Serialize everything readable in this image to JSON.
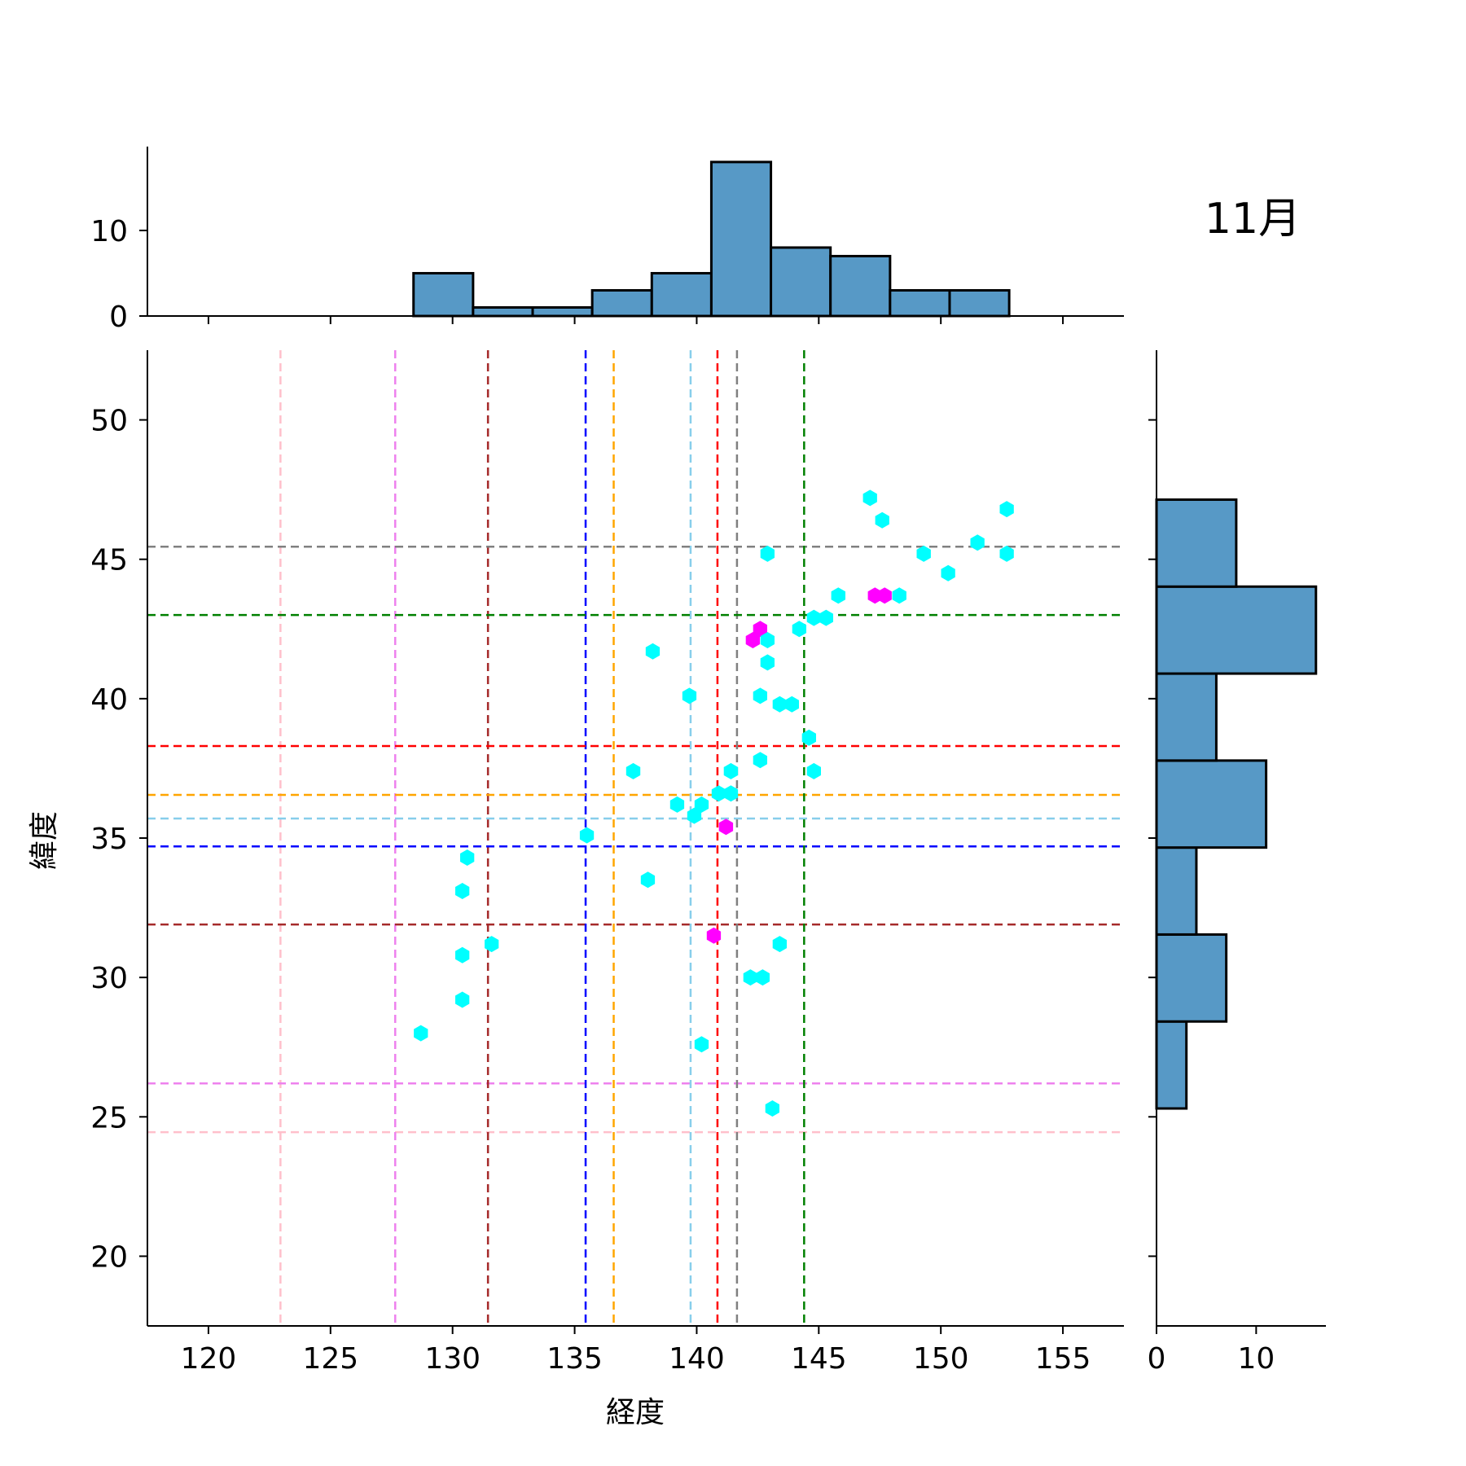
{
  "annotation": "11月",
  "chart_data": {
    "type": "scatter",
    "xlabel": "経度",
    "ylabel": "緯度",
    "xlim": [
      117.5,
      157.5
    ],
    "ylim": [
      17.5,
      52.5
    ],
    "x_ticks": [
      120,
      125,
      130,
      135,
      140,
      145,
      150,
      155
    ],
    "y_ticks": [
      20,
      25,
      30,
      35,
      40,
      45,
      50
    ],
    "point_colors": {
      "default": "#00ffff",
      "highlight": "#ff00ff"
    },
    "points": [
      {
        "x": 147.1,
        "y": 47.2,
        "c": "default"
      },
      {
        "x": 147.6,
        "y": 46.4,
        "c": "default"
      },
      {
        "x": 152.7,
        "y": 46.8,
        "c": "default"
      },
      {
        "x": 151.5,
        "y": 45.6,
        "c": "default"
      },
      {
        "x": 152.7,
        "y": 45.2,
        "c": "default"
      },
      {
        "x": 149.3,
        "y": 45.2,
        "c": "default"
      },
      {
        "x": 150.3,
        "y": 44.5,
        "c": "default"
      },
      {
        "x": 142.9,
        "y": 45.2,
        "c": "default"
      },
      {
        "x": 145.8,
        "y": 43.7,
        "c": "default"
      },
      {
        "x": 148.3,
        "y": 43.7,
        "c": "default"
      },
      {
        "x": 147.3,
        "y": 43.7,
        "c": "highlight"
      },
      {
        "x": 147.7,
        "y": 43.7,
        "c": "highlight"
      },
      {
        "x": 144.8,
        "y": 42.9,
        "c": "default"
      },
      {
        "x": 145.3,
        "y": 42.9,
        "c": "default"
      },
      {
        "x": 144.2,
        "y": 42.5,
        "c": "default"
      },
      {
        "x": 142.6,
        "y": 42.5,
        "c": "highlight"
      },
      {
        "x": 142.3,
        "y": 42.1,
        "c": "highlight"
      },
      {
        "x": 142.9,
        "y": 42.1,
        "c": "default"
      },
      {
        "x": 138.2,
        "y": 41.7,
        "c": "default"
      },
      {
        "x": 142.9,
        "y": 41.3,
        "c": "default"
      },
      {
        "x": 139.7,
        "y": 40.1,
        "c": "default"
      },
      {
        "x": 142.6,
        "y": 40.1,
        "c": "default"
      },
      {
        "x": 143.4,
        "y": 39.8,
        "c": "default"
      },
      {
        "x": 143.9,
        "y": 39.8,
        "c": "default"
      },
      {
        "x": 144.6,
        "y": 38.6,
        "c": "default"
      },
      {
        "x": 142.6,
        "y": 37.8,
        "c": "default"
      },
      {
        "x": 137.4,
        "y": 37.4,
        "c": "default"
      },
      {
        "x": 141.4,
        "y": 37.4,
        "c": "default"
      },
      {
        "x": 144.8,
        "y": 37.4,
        "c": "default"
      },
      {
        "x": 140.9,
        "y": 36.6,
        "c": "default"
      },
      {
        "x": 141.4,
        "y": 36.6,
        "c": "default"
      },
      {
        "x": 139.2,
        "y": 36.2,
        "c": "default"
      },
      {
        "x": 140.2,
        "y": 36.2,
        "c": "default"
      },
      {
        "x": 139.9,
        "y": 35.8,
        "c": "default"
      },
      {
        "x": 141.2,
        "y": 35.4,
        "c": "highlight"
      },
      {
        "x": 135.5,
        "y": 35.1,
        "c": "default"
      },
      {
        "x": 130.6,
        "y": 34.3,
        "c": "default"
      },
      {
        "x": 138.0,
        "y": 33.5,
        "c": "default"
      },
      {
        "x": 130.4,
        "y": 33.1,
        "c": "default"
      },
      {
        "x": 140.7,
        "y": 31.5,
        "c": "highlight"
      },
      {
        "x": 131.6,
        "y": 31.2,
        "c": "default"
      },
      {
        "x": 143.4,
        "y": 31.2,
        "c": "default"
      },
      {
        "x": 130.4,
        "y": 30.8,
        "c": "default"
      },
      {
        "x": 142.2,
        "y": 30.0,
        "c": "default"
      },
      {
        "x": 142.7,
        "y": 30.0,
        "c": "default"
      },
      {
        "x": 130.4,
        "y": 29.2,
        "c": "default"
      },
      {
        "x": 128.7,
        "y": 28.0,
        "c": "default"
      },
      {
        "x": 140.2,
        "y": 27.6,
        "c": "default"
      },
      {
        "x": 143.1,
        "y": 25.3,
        "c": "default"
      }
    ],
    "reference_lines": [
      {
        "color": "#ffc0cb",
        "x": 122.95,
        "y": 24.45
      },
      {
        "color": "#ee82ee",
        "x": 127.65,
        "y": 26.2
      },
      {
        "color": "#a52a2a",
        "x": 131.45,
        "y": 31.9
      },
      {
        "color": "#0000ff",
        "x": 135.45,
        "y": 34.7
      },
      {
        "color": "#ffa500",
        "x": 136.6,
        "y": 36.55
      },
      {
        "color": "#87ceeb",
        "x": 139.75,
        "y": 35.7
      },
      {
        "color": "#ff0000",
        "x": 140.85,
        "y": 38.3
      },
      {
        "color": "#808080",
        "x": 141.65,
        "y": 45.45
      },
      {
        "color": "#008000",
        "x": 144.4,
        "y": 43.0
      }
    ],
    "x_histogram": {
      "bin_edges": [
        128.4,
        130.84,
        133.28,
        135.72,
        138.16,
        140.6,
        143.04,
        145.48,
        147.92,
        150.36,
        152.8
      ],
      "counts": [
        5,
        1,
        1,
        3,
        5,
        18,
        8,
        7,
        3,
        3
      ],
      "count_ticks": [
        0,
        10
      ],
      "count_max": 19.8
    },
    "y_histogram": {
      "bin_edges": [
        25.3,
        28.42,
        31.54,
        34.66,
        37.78,
        40.9,
        44.02,
        47.14
      ],
      "counts": [
        3,
        7,
        4,
        11,
        6,
        16,
        8
      ],
      "count_ticks": [
        0,
        10
      ],
      "count_max": 17
    }
  }
}
